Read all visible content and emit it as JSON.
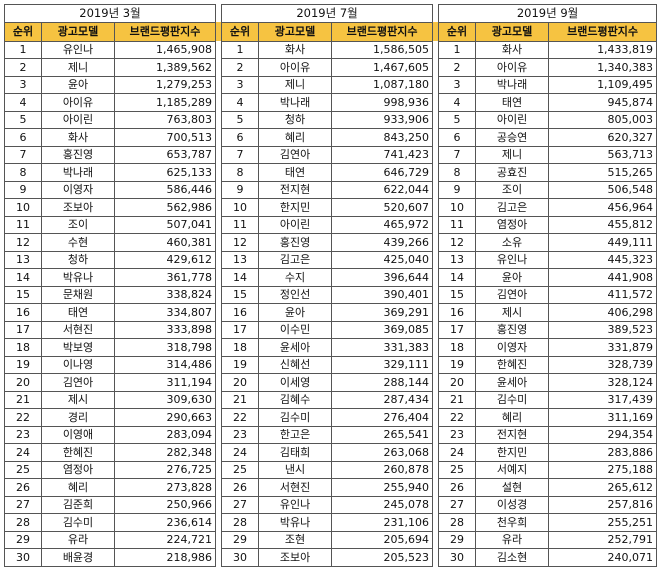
{
  "periods": [
    "2019년 3월",
    "2019년 7월",
    "2019년 9월"
  ],
  "headers": {
    "rank": "순위",
    "model": "광고모델",
    "score": "브랜드평판지수"
  },
  "rows": [
    [
      "1",
      "유인나",
      "1,465,908",
      "1",
      "화사",
      "1,586,505",
      "1",
      "화사",
      "1,433,819"
    ],
    [
      "2",
      "제니",
      "1,389,562",
      "2",
      "아이유",
      "1,467,605",
      "2",
      "아이유",
      "1,340,383"
    ],
    [
      "3",
      "윤아",
      "1,279,253",
      "3",
      "제니",
      "1,087,180",
      "3",
      "박나래",
      "1,109,495"
    ],
    [
      "4",
      "아이유",
      "1,185,289",
      "4",
      "박나래",
      "998,936",
      "4",
      "태연",
      "945,874"
    ],
    [
      "5",
      "아이린",
      "763,803",
      "5",
      "청하",
      "933,906",
      "5",
      "아이린",
      "805,003"
    ],
    [
      "6",
      "화사",
      "700,513",
      "6",
      "혜리",
      "843,250",
      "6",
      "공승연",
      "620,327"
    ],
    [
      "7",
      "홍진영",
      "653,787",
      "7",
      "김연아",
      "741,423",
      "7",
      "제니",
      "563,713"
    ],
    [
      "8",
      "박나래",
      "625,133",
      "8",
      "태연",
      "646,729",
      "8",
      "공효진",
      "515,265"
    ],
    [
      "9",
      "이영자",
      "586,446",
      "9",
      "전지현",
      "622,044",
      "9",
      "조이",
      "506,548"
    ],
    [
      "10",
      "조보아",
      "562,986",
      "10",
      "한지민",
      "520,607",
      "10",
      "김고은",
      "456,964"
    ],
    [
      "11",
      "조이",
      "507,041",
      "11",
      "아이린",
      "465,972",
      "11",
      "염정아",
      "455,812"
    ],
    [
      "12",
      "수현",
      "460,381",
      "12",
      "홍진영",
      "439,266",
      "12",
      "소유",
      "449,111"
    ],
    [
      "13",
      "청하",
      "429,612",
      "13",
      "김고은",
      "425,040",
      "13",
      "유인나",
      "445,323"
    ],
    [
      "14",
      "박유나",
      "361,778",
      "14",
      "수지",
      "396,644",
      "14",
      "윤아",
      "441,908"
    ],
    [
      "15",
      "문채원",
      "338,824",
      "15",
      "정인선",
      "390,401",
      "15",
      "김연아",
      "411,572"
    ],
    [
      "16",
      "태연",
      "334,807",
      "16",
      "윤아",
      "369,291",
      "16",
      "제시",
      "406,298"
    ],
    [
      "17",
      "서현진",
      "333,898",
      "17",
      "이수민",
      "369,085",
      "17",
      "홍진영",
      "389,523"
    ],
    [
      "18",
      "박보영",
      "318,798",
      "18",
      "윤세아",
      "331,383",
      "18",
      "이영자",
      "331,879"
    ],
    [
      "19",
      "이나영",
      "314,486",
      "19",
      "신혜선",
      "329,111",
      "19",
      "한혜진",
      "328,739"
    ],
    [
      "20",
      "김연아",
      "311,194",
      "20",
      "이세영",
      "288,144",
      "20",
      "윤세아",
      "328,124"
    ],
    [
      "21",
      "제시",
      "309,630",
      "21",
      "김혜수",
      "287,434",
      "21",
      "김수미",
      "317,439"
    ],
    [
      "22",
      "경리",
      "290,663",
      "22",
      "김수미",
      "276,404",
      "22",
      "혜리",
      "311,169"
    ],
    [
      "23",
      "이영애",
      "283,094",
      "23",
      "한고은",
      "265,541",
      "23",
      "전지현",
      "294,354"
    ],
    [
      "24",
      "한혜진",
      "282,348",
      "24",
      "김태희",
      "263,068",
      "24",
      "한지민",
      "283,886"
    ],
    [
      "25",
      "염정아",
      "276,725",
      "25",
      "낸시",
      "260,878",
      "25",
      "서예지",
      "275,188"
    ],
    [
      "26",
      "혜리",
      "273,828",
      "26",
      "서현진",
      "255,940",
      "26",
      "설현",
      "265,612"
    ],
    [
      "27",
      "김준희",
      "250,966",
      "27",
      "유인나",
      "245,078",
      "27",
      "이성경",
      "257,816"
    ],
    [
      "28",
      "김수미",
      "236,614",
      "28",
      "박유나",
      "231,106",
      "28",
      "천우희",
      "255,251"
    ],
    [
      "29",
      "유라",
      "224,721",
      "29",
      "조현",
      "205,694",
      "29",
      "유라",
      "252,791"
    ],
    [
      "30",
      "배윤경",
      "218,986",
      "30",
      "조보아",
      "205,523",
      "30",
      "김소현",
      "240,071"
    ]
  ],
  "colors": {
    "header_bg": "#f6c341",
    "border": "#555555"
  }
}
